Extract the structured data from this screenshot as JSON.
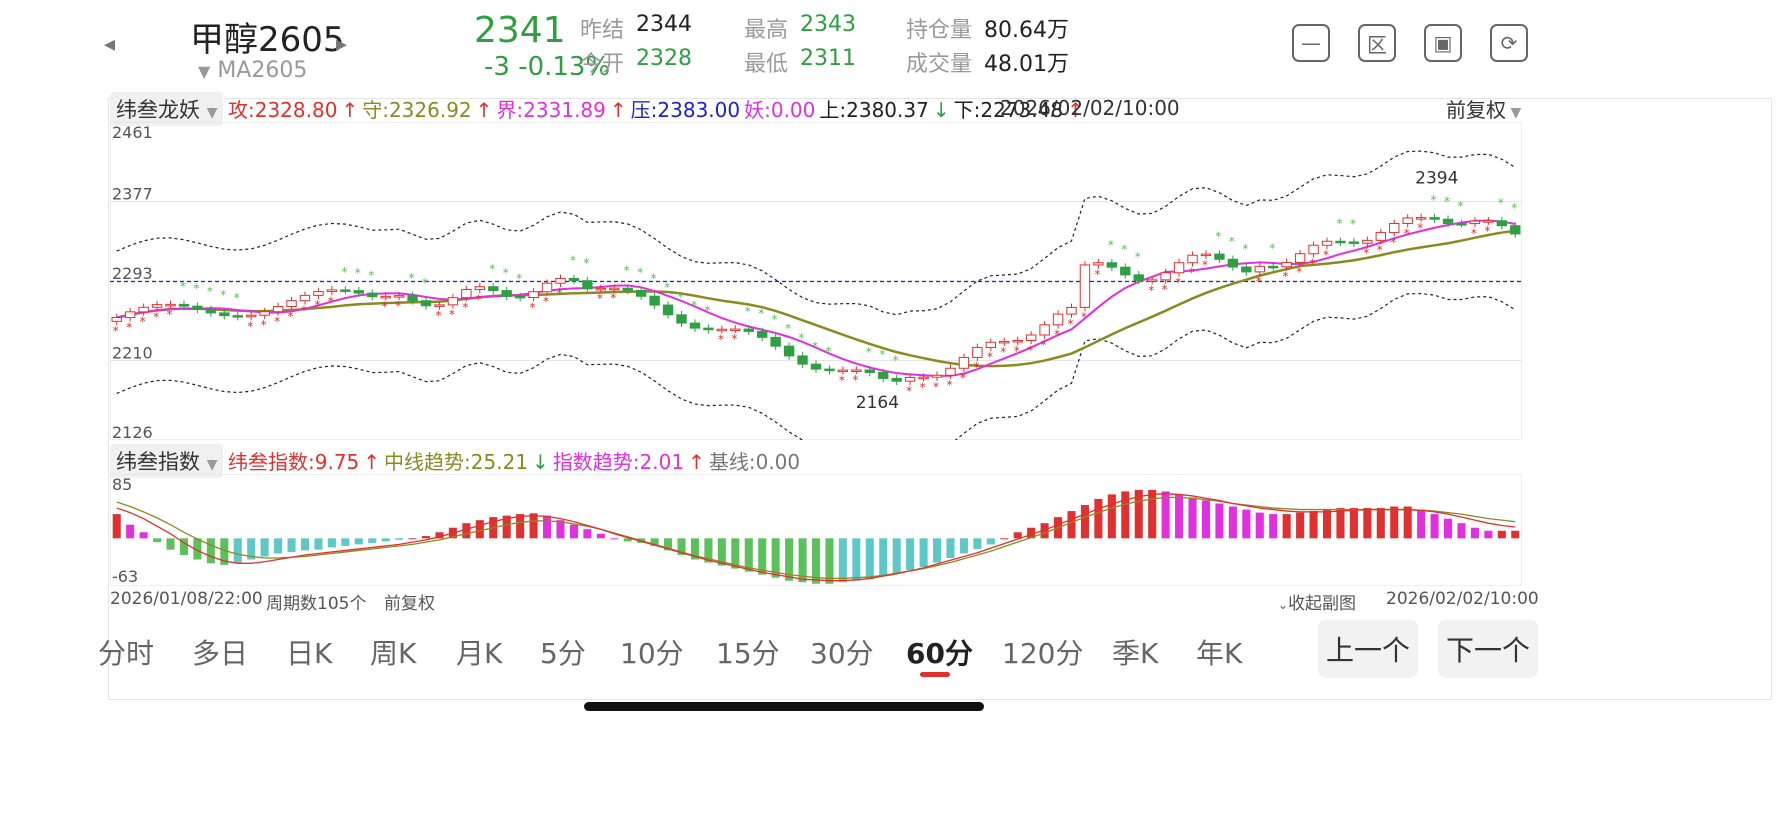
{
  "header": {
    "title": "甲醇2605",
    "subtitle": "MA2605",
    "price": "2341",
    "change": "-3  -0.13%",
    "stats": [
      {
        "label": "昨结",
        "value": "2344",
        "green": false
      },
      {
        "label": "今开",
        "value": "2328",
        "green": true
      },
      {
        "label": "最高",
        "value": "2343",
        "green": true
      },
      {
        "label": "最低",
        "value": "2311",
        "green": true
      },
      {
        "label": "持仓量",
        "value": "80.64万",
        "green": false
      },
      {
        "label": "成交量",
        "value": "48.01万",
        "green": false
      }
    ],
    "icons": [
      "minus-square-icon",
      "area-icon",
      "picture-icon",
      "rotate-screen-icon"
    ]
  },
  "main_chart": {
    "indicator_name": "纬叁龙妖",
    "legend": [
      {
        "text": "攻:2328.80",
        "color": "#e03030",
        "arrow": "↑",
        "arrow_color": "#e03030"
      },
      {
        "text": "守:2326.92",
        "color": "#8a8a20",
        "arrow": "↑",
        "arrow_color": "#e03030"
      },
      {
        "text": "界:2331.89",
        "color": "#e030e0",
        "arrow": "↑",
        "arrow_color": "#e03030"
      },
      {
        "text": "压:2383.00",
        "color": "#2020d0",
        "arrow": "",
        "arrow_color": ""
      },
      {
        "text": "妖:0.00",
        "color": "#e030e0",
        "arrow": "",
        "arrow_color": ""
      },
      {
        "text": "上:2380.37",
        "color": "#222222",
        "arrow": "↓",
        "arrow_color": "#2ea043"
      },
      {
        "text": "下:2273.48",
        "color": "#222222",
        "arrow": "↑",
        "arrow_color": "#e03030"
      }
    ],
    "datetime": "2026/02/02/10:00",
    "adjust_label": "前复权",
    "y_ticks": [
      "2461",
      "2377",
      "2293",
      "2210",
      "2126"
    ],
    "low_label": "2164",
    "high_label": "2394"
  },
  "sub_chart": {
    "indicator_name": "纬叁指数",
    "legend": [
      {
        "text": "纬叁指数:9.75",
        "color": "#e03030",
        "arrow": "↑",
        "arrow_color": "#e03030"
      },
      {
        "text": "中线趋势:25.21",
        "color": "#8a8a20",
        "arrow": "↓",
        "arrow_color": "#2ea043"
      },
      {
        "text": "指数趋势:2.01",
        "color": "#e030e0",
        "arrow": "↑",
        "arrow_color": "#e03030"
      },
      {
        "text": "基线:0.00",
        "color": "#777777",
        "arrow": "",
        "arrow_color": ""
      }
    ],
    "y_ticks": [
      "85",
      "-63"
    ]
  },
  "footer": {
    "start_date": "2026/01/08/22:00",
    "period_count": "周期数105个",
    "adjust": "前复权",
    "collapse": "收起副图",
    "end_date": "2026/02/02/10:00"
  },
  "tabs": [
    "分时",
    "多日",
    "日K",
    "周K",
    "月K",
    "5分",
    "10分",
    "15分",
    "30分",
    "60分",
    "120分",
    "季K",
    "年K"
  ],
  "active_tab": "60分",
  "nav": {
    "prev": "上一个",
    "next": "下一个"
  },
  "colors": {
    "up": "#e03030",
    "down": "#2ea043",
    "accent": "#e03030"
  },
  "chart_data": {
    "type": "candlestick",
    "y_range": [
      2126,
      2461
    ],
    "key_levels": {
      "压": 2383.0,
      "上": 2380.37,
      "下": 2273.48,
      "攻": 2328.8,
      "守": 2326.92,
      "界": 2331.89
    },
    "extremes": {
      "low": 2164,
      "high": 2394
    },
    "oscillator": {
      "type": "bar",
      "y_range": [
        -63,
        85
      ],
      "values": [
        32,
        18,
        8,
        -5,
        -15,
        -22,
        -28,
        -33,
        -35,
        -32,
        -28,
        -24,
        -20,
        -18,
        -16,
        -15,
        -12,
        -10,
        -8,
        -6,
        -4,
        -2,
        0,
        3,
        8,
        14,
        20,
        24,
        28,
        30,
        32,
        33,
        30,
        24,
        18,
        12,
        6,
        0,
        -4,
        -6,
        -10,
        -16,
        -22,
        -28,
        -32,
        -36,
        -40,
        -44,
        -48,
        -52,
        -56,
        -58,
        -60,
        -60,
        -58,
        -56,
        -54,
        -50,
        -46,
        -42,
        -38,
        -32,
        -26,
        -20,
        -14,
        -8,
        0,
        8,
        14,
        20,
        28,
        36,
        44,
        52,
        58,
        62,
        64,
        64,
        62,
        58,
        54,
        50,
        46,
        42,
        38,
        34,
        32,
        32,
        34,
        36,
        38,
        40,
        40,
        40,
        40,
        42,
        42,
        38,
        32,
        26,
        20,
        14,
        10,
        10,
        10
      ]
    },
    "oscillator_trend": [
      40,
      34,
      26,
      16,
      6,
      -6,
      -16,
      -24,
      -30,
      -33,
      -33,
      -31,
      -28,
      -25,
      -22,
      -20,
      -18,
      -16,
      -14,
      -12,
      -10,
      -8,
      -5,
      -2,
      2,
      7,
      12,
      17,
      22,
      26,
      29,
      30,
      29,
      26,
      22,
      17,
      12,
      6,
      1,
      -4,
      -9,
      -14,
      -19,
      -24,
      -29,
      -33,
      -37,
      -41,
      -45,
      -48,
      -51,
      -54,
      -55,
      -56,
      -56,
      -55,
      -53,
      -50,
      -47,
      -43,
      -39,
      -34,
      -29,
      -24,
      -19,
      -13,
      -7,
      -1,
      5,
      11,
      18,
      25,
      32,
      39,
      45,
      51,
      55,
      58,
      59,
      58,
      56,
      53,
      50,
      46,
      43,
      40,
      38,
      36,
      35,
      35,
      35,
      36,
      37,
      38,
      38,
      38,
      38,
      37,
      35,
      32,
      28,
      24,
      20,
      17,
      15
    ],
    "oscillator_mid": [
      48,
      42,
      35,
      27,
      18,
      8,
      -1,
      -9,
      -16,
      -21,
      -24,
      -26,
      -26,
      -25,
      -24,
      -22,
      -20,
      -18,
      -16,
      -14,
      -12,
      -10,
      -8,
      -5,
      -2,
      2,
      6,
      10,
      14,
      18,
      21,
      23,
      23,
      22,
      19,
      16,
      12,
      7,
      2,
      -3,
      -8,
      -13,
      -18,
      -23,
      -27,
      -31,
      -35,
      -39,
      -42,
      -45,
      -48,
      -50,
      -52,
      -53,
      -53,
      -52,
      -51,
      -49,
      -46,
      -43,
      -40,
      -36,
      -32,
      -27,
      -22,
      -17,
      -11,
      -5,
      1,
      7,
      14,
      21,
      28,
      34,
      40,
      45,
      49,
      52,
      54,
      54,
      53,
      51,
      49,
      46,
      44,
      42,
      40,
      39,
      38,
      38,
      38,
      38,
      38,
      38,
      38,
      38,
      38,
      37,
      36,
      34,
      32,
      29,
      26,
      24,
      22
    ]
  }
}
